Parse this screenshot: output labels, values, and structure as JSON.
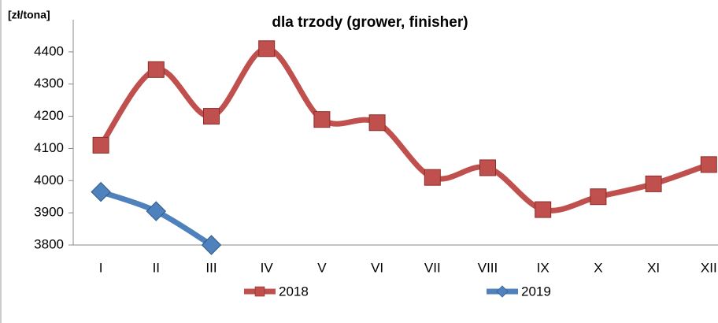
{
  "chart_data": {
    "type": "line",
    "title": "dla trzody (grower, finisher)",
    "y_label": "[zł/tona]",
    "categories": [
      "I",
      "II",
      "III",
      "IV",
      "V",
      "VI",
      "VII",
      "VIII",
      "IX",
      "X",
      "XI",
      "XII"
    ],
    "series": [
      {
        "name": "2018",
        "color": "#c0504d",
        "marker": "square",
        "values": [
          4110,
          4345,
          4200,
          4410,
          4190,
          4180,
          4010,
          4040,
          3910,
          3950,
          3990,
          4050
        ]
      },
      {
        "name": "2019",
        "color": "#4f81bd",
        "marker": "diamond",
        "values": [
          3965,
          3905,
          3800,
          null,
          null,
          null,
          null,
          null,
          null,
          null,
          null,
          null
        ]
      }
    ],
    "ylim": [
      3800,
      4500
    ],
    "yticks": [
      3800,
      3900,
      4000,
      4100,
      4200,
      4300,
      4400
    ],
    "grid": false,
    "legend": "bottom"
  }
}
